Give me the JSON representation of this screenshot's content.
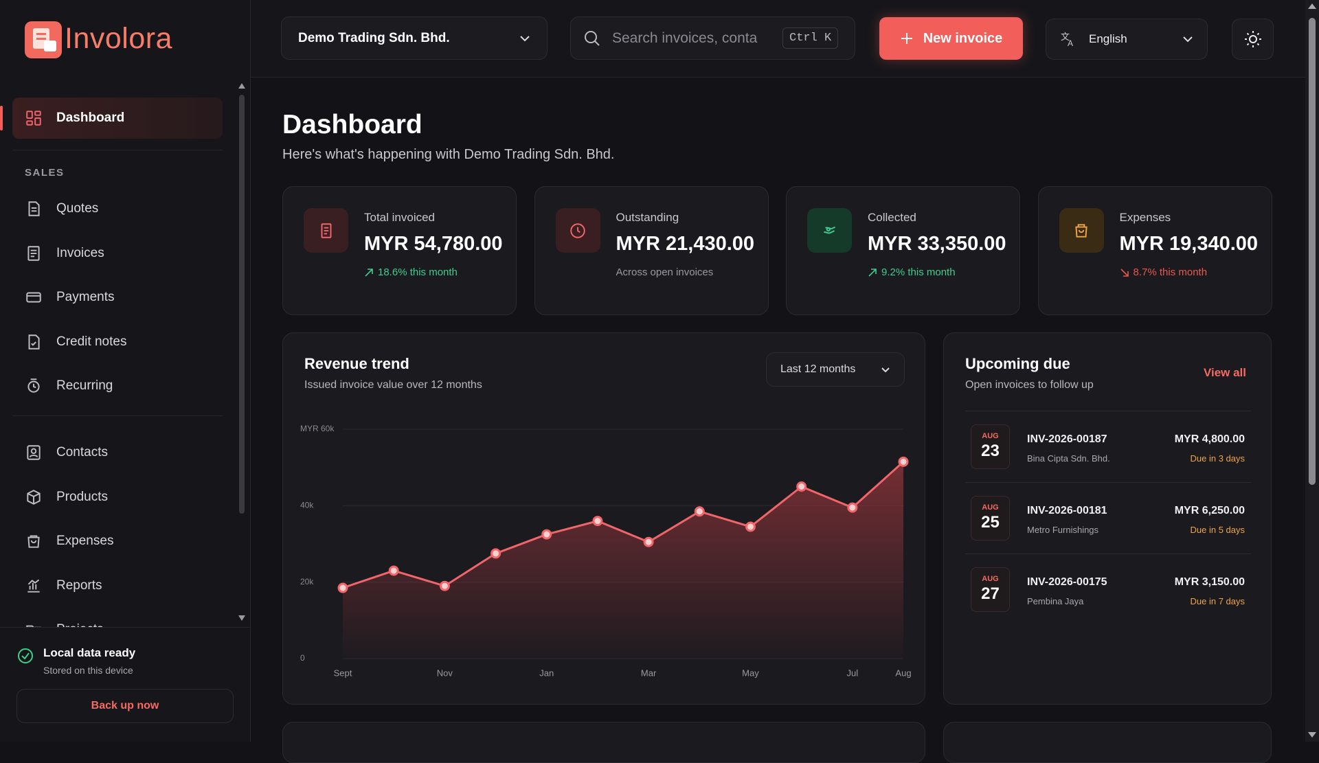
{
  "app": {
    "brand": "Involora"
  },
  "header": {
    "company": "Demo Trading Sdn. Bhd.",
    "search_placeholder": "Search invoices, conta",
    "shortcut": "Ctrl K",
    "new_invoice": "New invoice",
    "language": "English"
  },
  "sidebar": {
    "active": "Dashboard",
    "section": "SALES",
    "sales_items": [
      "Quotes",
      "Invoices",
      "Payments",
      "Credit notes",
      "Recurring"
    ],
    "other_items": [
      "Contacts",
      "Products",
      "Expenses",
      "Reports",
      "Projects"
    ]
  },
  "status": {
    "title": "Local data ready",
    "subtitle": "Stored on this device",
    "backup": "Back up now"
  },
  "page": {
    "title": "Dashboard",
    "subtitle": "Here's what's happening with Demo Trading Sdn. Bhd."
  },
  "stats": [
    {
      "label": "Total invoiced",
      "value": "MYR 54,780.00",
      "note": "18.6% this month",
      "trend": "up"
    },
    {
      "label": "Outstanding",
      "value": "MYR 21,430.00",
      "note": "Across open invoices",
      "trend": "none"
    },
    {
      "label": "Collected",
      "value": "MYR 33,350.00",
      "note": "9.2% this month",
      "trend": "up"
    },
    {
      "label": "Expenses",
      "value": "MYR 19,340.00",
      "note": "8.7% this month",
      "trend": "down"
    }
  ],
  "revenue": {
    "title": "Revenue trend",
    "subtitle": "Issued invoice value over 12 months",
    "range": "Last 12 months",
    "chart": {
      "type": "line",
      "categories": [
        "Sept",
        null,
        "Nov",
        null,
        "Jan",
        null,
        "Mar",
        null,
        "May",
        null,
        "Jul",
        "Aug"
      ],
      "values": [
        18500,
        23000,
        19000,
        27500,
        32500,
        36000,
        30500,
        38500,
        34500,
        45000,
        39500,
        51500
      ],
      "color": "#f0666a",
      "ylim": [
        0,
        60000
      ],
      "yticks": [
        0,
        {
          "value": 20000,
          "label": "20k"
        },
        {
          "value": 40000,
          "label": "40k"
        },
        {
          "value": 60000,
          "label": "MYR 60k"
        }
      ],
      "grid": true
    }
  },
  "upcoming": {
    "title": "Upcoming due",
    "subtitle": "Open invoices to follow up",
    "view_all": "View all",
    "items": [
      {
        "month": "AUG",
        "day": "23",
        "number": "INV-2026-00187",
        "customer": "Bina Cipta Sdn. Bhd.",
        "amount": "MYR 4,800.00",
        "due": "Due in 3 days"
      },
      {
        "month": "AUG",
        "day": "25",
        "number": "INV-2026-00181",
        "customer": "Metro Furnishings",
        "amount": "MYR 6,250.00",
        "due": "Due in 5 days"
      },
      {
        "month": "AUG",
        "day": "27",
        "number": "INV-2026-00175",
        "customer": "Pembina Jaya",
        "amount": "MYR 3,150.00",
        "due": "Due in 7 days"
      }
    ]
  }
}
